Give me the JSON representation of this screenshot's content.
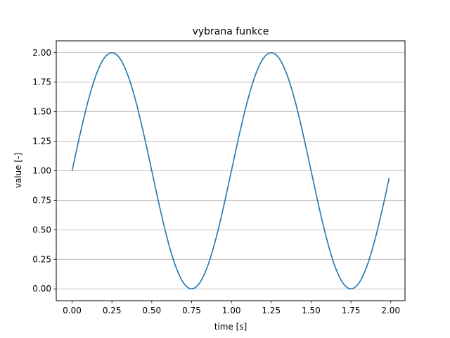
{
  "chart_data": {
    "type": "line",
    "title": "vybrana funkce",
    "xlabel": "time [s]",
    "ylabel": "value [-]",
    "xlim": [
      -0.0995,
      2.0895
    ],
    "ylim": [
      -0.1,
      2.1
    ],
    "xticks": [
      0.0,
      0.25,
      0.5,
      0.75,
      1.0,
      1.25,
      1.5,
      1.75,
      2.0
    ],
    "xtick_labels": [
      "0.00",
      "0.25",
      "0.50",
      "0.75",
      "1.00",
      "1.25",
      "1.50",
      "1.75",
      "2.00"
    ],
    "yticks": [
      0.0,
      0.25,
      0.5,
      0.75,
      1.0,
      1.25,
      1.5,
      1.75,
      2.0
    ],
    "ytick_labels": [
      "0.00",
      "0.25",
      "0.50",
      "0.75",
      "1.00",
      "1.25",
      "1.50",
      "1.75",
      "2.00"
    ],
    "grid": "horizontal",
    "colors": {
      "line": "#1f77b4",
      "grid": "#b0b0b0",
      "axes": "#000000"
    },
    "series": [
      {
        "x": [
          0.0,
          0.05,
          0.1,
          0.15,
          0.2,
          0.25,
          0.3,
          0.35,
          0.4,
          0.45,
          0.5,
          0.55,
          0.6,
          0.65,
          0.7,
          0.75,
          0.8,
          0.85,
          0.9,
          0.95,
          1.0,
          1.05,
          1.1,
          1.15,
          1.2,
          1.25,
          1.3,
          1.35,
          1.4,
          1.45,
          1.5,
          1.55,
          1.6,
          1.65,
          1.7,
          1.75,
          1.8,
          1.85,
          1.9,
          1.95,
          1.99
        ],
        "y": [
          1.0,
          1.309,
          1.588,
          1.809,
          1.951,
          2.0,
          1.951,
          1.809,
          1.588,
          1.309,
          1.0,
          0.691,
          0.412,
          0.191,
          0.049,
          0.0,
          0.049,
          0.191,
          0.412,
          0.691,
          1.0,
          1.309,
          1.588,
          1.809,
          1.951,
          2.0,
          1.951,
          1.809,
          1.588,
          1.309,
          1.0,
          0.691,
          0.412,
          0.191,
          0.049,
          0.0,
          0.049,
          0.191,
          0.412,
          0.691,
          0.937
        ]
      }
    ]
  }
}
